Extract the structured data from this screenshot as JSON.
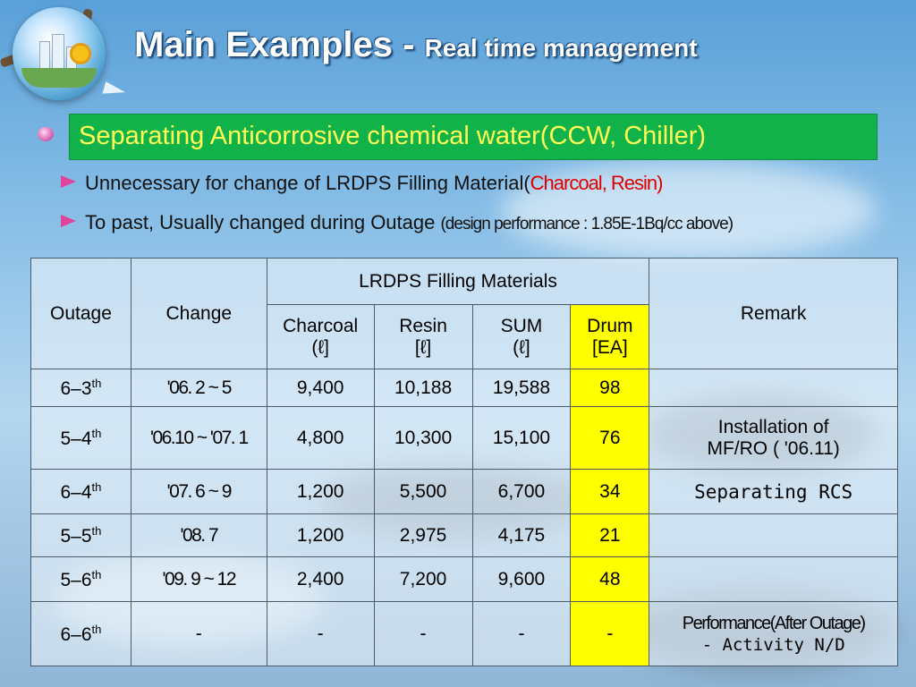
{
  "title": {
    "main": "Main Examples - ",
    "sub": "Real time management"
  },
  "section": {
    "heading": "Separating Anticorrosive chemical water(CCW, Chiller)",
    "points": [
      {
        "text": "Unnecessary for change of LRDPS Filling Material(",
        "highlight": "Charcoal, Resin)"
      },
      {
        "text": "To past, Usually changed during Outage ",
        "highlight": "(design performance : 1.85E-1Bq/cc  above)"
      }
    ]
  },
  "table": {
    "headers": {
      "outage": "Outage",
      "change": "Change",
      "group": "LRDPS Filling Materials",
      "remark": "Remark",
      "charcoal": "Charcoal",
      "charcoal_unit": "(ℓ]",
      "resin": "Resin",
      "resin_unit": "[ℓ]",
      "sum": "SUM",
      "sum_unit": "(ℓ]",
      "drum": "Drum",
      "drum_unit": "[EA]"
    },
    "rows": [
      {
        "outage": "6–3",
        "sup": "th",
        "change": "'06. 2 ~ 5",
        "charcoal": "9,400",
        "resin": "10,188",
        "sum": "19,588",
        "drum": "98",
        "remark": "",
        "remark2": ""
      },
      {
        "outage": "5–4",
        "sup": "th",
        "change": "'06.10 ~ '07. 1",
        "charcoal": "4,800",
        "resin": "10,300",
        "sum": "15,100",
        "drum": "76",
        "remark": "Installation of",
        "remark2": "MF/RO ( '06.11)"
      },
      {
        "outage": "6–4",
        "sup": "th",
        "change": "'07. 6 ~ 9",
        "charcoal": "1,200",
        "resin": "5,500",
        "sum": "6,700",
        "drum": "34",
        "remark": "Separating RCS",
        "remark2": ""
      },
      {
        "outage": "5–5",
        "sup": "th",
        "change": "'08. 7",
        "charcoal": "1,200",
        "resin": "2,975",
        "sum": "4,175",
        "drum": "21",
        "remark": "",
        "remark2": ""
      },
      {
        "outage": "5–6",
        "sup": "th",
        "change": "'09. 9 ~ 12",
        "charcoal": "2,400",
        "resin": "7,200",
        "sum": "9,600",
        "drum": "48",
        "remark": "",
        "remark2": ""
      },
      {
        "outage": "6–6",
        "sup": "th",
        "change": "-",
        "charcoal": "-",
        "resin": "-",
        "sum": "-",
        "drum": "-",
        "remark": "Performance(After Outage)",
        "remark2": "- Activity N/D"
      }
    ]
  },
  "colors": {
    "heading_bg": "#12b24a",
    "heading_text": "#ffff55",
    "highlight": "#e00000",
    "drum_bg": "#ffff00"
  }
}
